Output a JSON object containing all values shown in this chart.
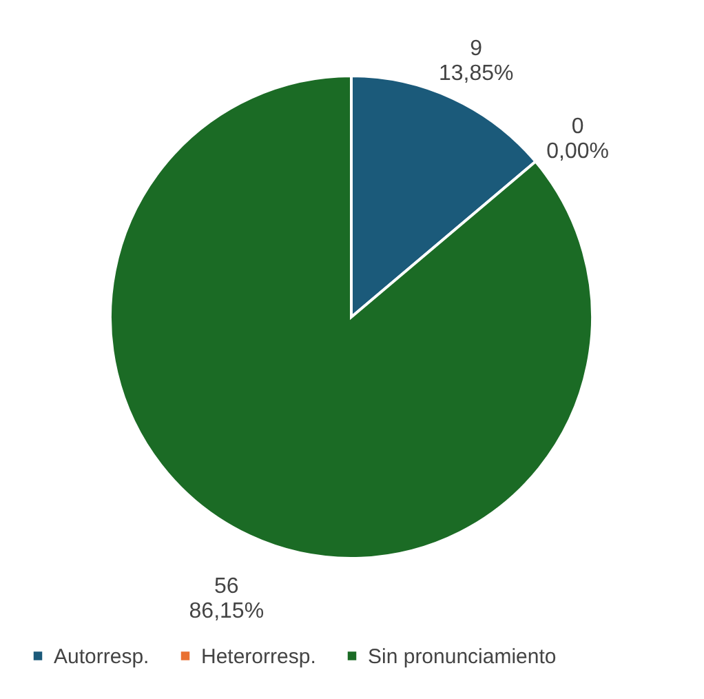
{
  "chart_data": {
    "type": "pie",
    "categories": [
      "Autorresp.",
      "Heterorresp.",
      "Sin pronunciamiento"
    ],
    "values": [
      9,
      0,
      56
    ],
    "colors": [
      "#1b5a7a",
      "#e97132",
      "#1b6b25"
    ],
    "value_labels": [
      "9\n13,85%",
      "0\n0,00%",
      "56\n86,15%"
    ],
    "legend": "bottom"
  }
}
